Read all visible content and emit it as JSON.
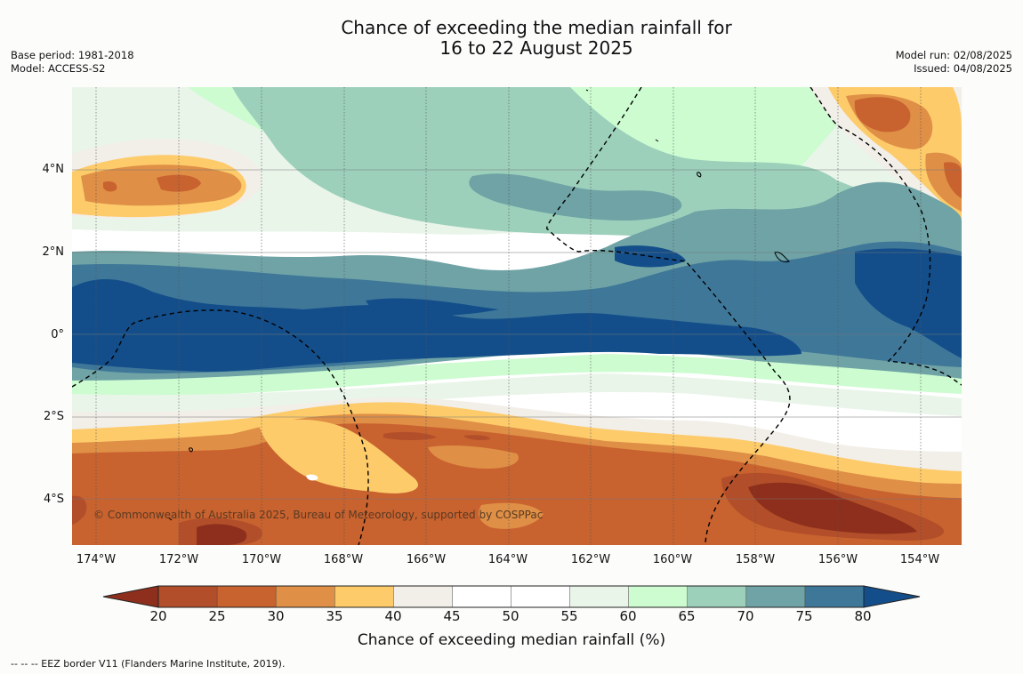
{
  "title": {
    "line1": "Chance of exceeding the median rainfall for",
    "line2": "16 to 22 August 2025"
  },
  "meta_left": {
    "base_period": "Base period: 1981-2018",
    "model": "Model: ACCESS-S2"
  },
  "meta_right": {
    "model_run": "Model run: 02/08/2025",
    "issued": "Issued: 04/08/2025"
  },
  "map": {
    "lat_labels": [
      "4°N",
      "2°N",
      "0°",
      "2°S",
      "4°S"
    ],
    "lon_labels": [
      "174°W",
      "172°W",
      "170°W",
      "168°W",
      "166°W",
      "164°W",
      "162°W",
      "160°W",
      "158°W",
      "156°W",
      "154°W"
    ],
    "copyright": "© Commonwealth of Australia 2025, Bureau of Meteorology, supported by COSPPac"
  },
  "colorbar": {
    "ticks": [
      "20",
      "25",
      "30",
      "35",
      "40",
      "45",
      "50",
      "55",
      "60",
      "65",
      "70",
      "75",
      "80"
    ],
    "colors": [
      "#b24f2a",
      "#c8622f",
      "#df8f46",
      "#fdcb6a",
      "#f2eee8",
      "#ffffff",
      "#ffffff",
      "#eaf5ea",
      "#ccfcd0",
      "#9cd0bb",
      "#6fa3a5",
      "#3f7799"
    ],
    "below_color": "#8d2f1c",
    "above_color": "#134e8a",
    "label": "Chance of exceeding median rainfall (%)"
  },
  "footnote": "--  --  -- EEZ border V11 (Flanders Marine Institute, 2019)."
}
